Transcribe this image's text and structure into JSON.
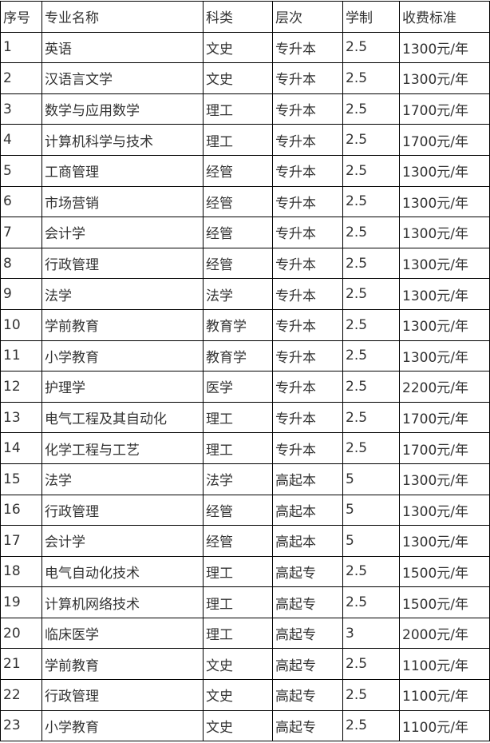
{
  "headers": [
    "序号",
    "专业名称",
    "科类",
    "层次",
    "学制",
    "收费标准"
  ],
  "rows": [
    [
      "1",
      "英语",
      "文史",
      "专升本",
      "2.5",
      "1300元/年"
    ],
    [
      "2",
      "汉语言文学",
      "文史",
      "专升本",
      "2.5",
      "1300元/年"
    ],
    [
      "3",
      "数学与应用数学",
      "理工",
      "专升本",
      "2.5",
      "1700元/年"
    ],
    [
      "4",
      "计算机科学与技术",
      "理工",
      "专升本",
      "2.5",
      "1700元/年"
    ],
    [
      "5",
      "工商管理",
      "经管",
      "专升本",
      "2.5",
      "1300元/年"
    ],
    [
      "6",
      "市场营销",
      "经管",
      "专升本",
      "2.5",
      "1300元/年"
    ],
    [
      "7",
      "会计学",
      "经管",
      "专升本",
      "2.5",
      "1300元/年"
    ],
    [
      "8",
      "行政管理",
      "经管",
      "专升本",
      "2.5",
      "1300元/年"
    ],
    [
      "9",
      "法学",
      "法学",
      "专升本",
      "2.5",
      "1300元/年"
    ],
    [
      "10",
      "学前教育",
      "教育学",
      "专升本",
      "2.5",
      "1300元/年"
    ],
    [
      "11",
      "小学教育",
      "教育学",
      "专升本",
      "2.5",
      "1300元/年"
    ],
    [
      "12",
      "护理学",
      "医学",
      "专升本",
      "2.5",
      "2200元/年"
    ],
    [
      "13",
      "电气工程及其自动化",
      "理工",
      "专升本",
      "2.5",
      "1700元/年"
    ],
    [
      "14",
      "化学工程与工艺",
      "理工",
      "专升本",
      "2.5",
      "1700元/年"
    ],
    [
      "15",
      "法学",
      "法学",
      "高起本",
      "5",
      "1300元/年"
    ],
    [
      "16",
      "行政管理",
      "经管",
      "高起本",
      "5",
      "1300元/年"
    ],
    [
      "17",
      "会计学",
      "经管",
      "高起本",
      "5",
      "1300元/年"
    ],
    [
      "18",
      "电气自动化技术",
      "理工",
      "高起专",
      "2.5",
      "1500元/年"
    ],
    [
      "19",
      "计算机网络技术",
      "理工",
      "高起专",
      "2.5",
      "1500元/年"
    ],
    [
      "20",
      "临床医学",
      "理工",
      "高起专",
      "3",
      "2000元/年"
    ],
    [
      "21",
      "学前教育",
      "文史",
      "高起专",
      "2.5",
      "1100元/年"
    ],
    [
      "22",
      "行政管理",
      "文史",
      "高起专",
      "2.5",
      "1100元/年"
    ],
    [
      "23",
      "小学教育",
      "文史",
      "高起专",
      "2.5",
      "1100元/年"
    ]
  ]
}
